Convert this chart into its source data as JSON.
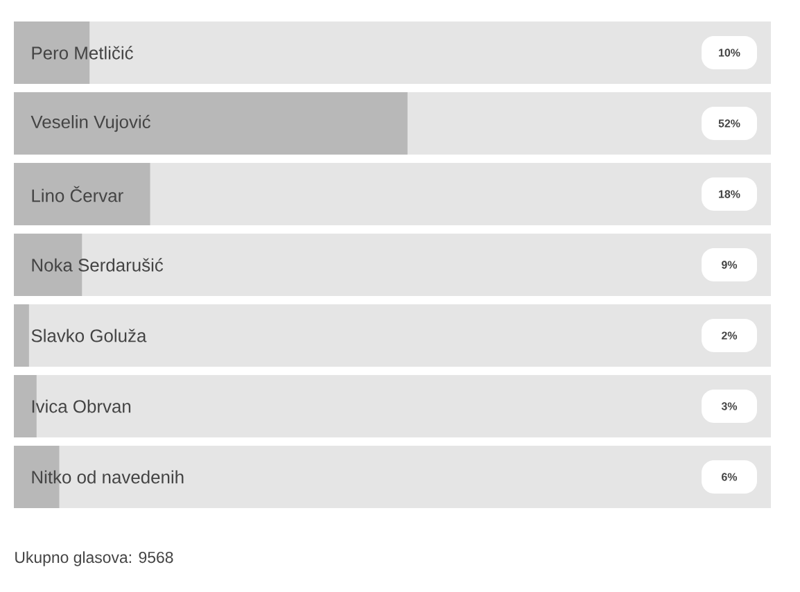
{
  "chart_data": {
    "type": "bar",
    "orientation": "horizontal",
    "categories": [
      "Pero Metličić",
      "Veselin Vujović",
      "Lino Červar",
      "Noka Serdarušić",
      "Slavko Goluža",
      "Ivica Obrvan",
      "Nitko od navedenih"
    ],
    "values": [
      10,
      52,
      18,
      9,
      2,
      3,
      6
    ],
    "value_labels": [
      "10%",
      "52%",
      "18%",
      "9%",
      "2%",
      "3%",
      "6%"
    ],
    "color": "#b8b8b8",
    "xlim": [
      0,
      100
    ],
    "annotations": [
      "Ukupno glasova: 9568"
    ]
  }
}
